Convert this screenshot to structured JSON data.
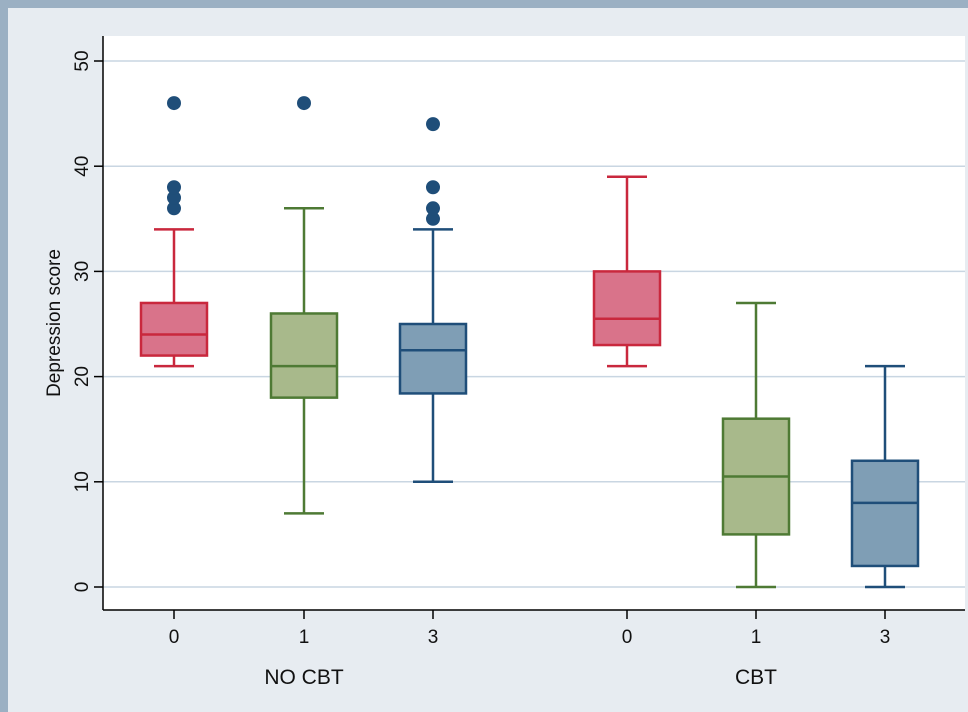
{
  "chart_data": {
    "type": "boxplot",
    "ylabel": "Depression score",
    "ylim": [
      -2,
      52
    ],
    "yticks": [
      0,
      10,
      20,
      30,
      40,
      50
    ],
    "grid": true,
    "groups": [
      {
        "label": "NO CBT",
        "categories": [
          "0",
          "1",
          "3"
        ]
      },
      {
        "label": "CBT",
        "categories": [
          "0",
          "1",
          "3"
        ]
      }
    ],
    "boxes": [
      {
        "group": "NO CBT",
        "category": "0",
        "color": "#c9283d",
        "fill": "#d9738a",
        "whisker_low": 21,
        "q1": 22,
        "median": 24,
        "q3": 27,
        "whisker_high": 34,
        "outliers": [
          36,
          37,
          38,
          46
        ]
      },
      {
        "group": "NO CBT",
        "category": "1",
        "color": "#4e7a34",
        "fill": "#a8b98b",
        "whisker_low": 7,
        "q1": 18,
        "median": 21,
        "q3": 26,
        "whisker_high": 36,
        "outliers": [
          46
        ]
      },
      {
        "group": "NO CBT",
        "category": "3",
        "color": "#1f4e79",
        "fill": "#7f9eb5",
        "whisker_low": 10,
        "q1": 18.4,
        "median": 22.5,
        "q3": 25,
        "whisker_high": 34,
        "outliers": [
          35,
          36,
          38,
          44
        ]
      },
      {
        "group": "CBT",
        "category": "0",
        "color": "#c9283d",
        "fill": "#d9738a",
        "whisker_low": 21,
        "q1": 23,
        "median": 25.5,
        "q3": 30,
        "whisker_high": 39,
        "outliers": []
      },
      {
        "group": "CBT",
        "category": "1",
        "color": "#4e7a34",
        "fill": "#a8b98b",
        "whisker_low": 0,
        "q1": 5,
        "median": 10.5,
        "q3": 16,
        "whisker_high": 27,
        "outliers": []
      },
      {
        "group": "CBT",
        "category": "3",
        "color": "#1f4e79",
        "fill": "#7f9eb5",
        "whisker_low": 0,
        "q1": 2,
        "median": 8,
        "q3": 12,
        "whisker_high": 21,
        "outliers": []
      }
    ],
    "outlier_color": "#1f4e79"
  }
}
